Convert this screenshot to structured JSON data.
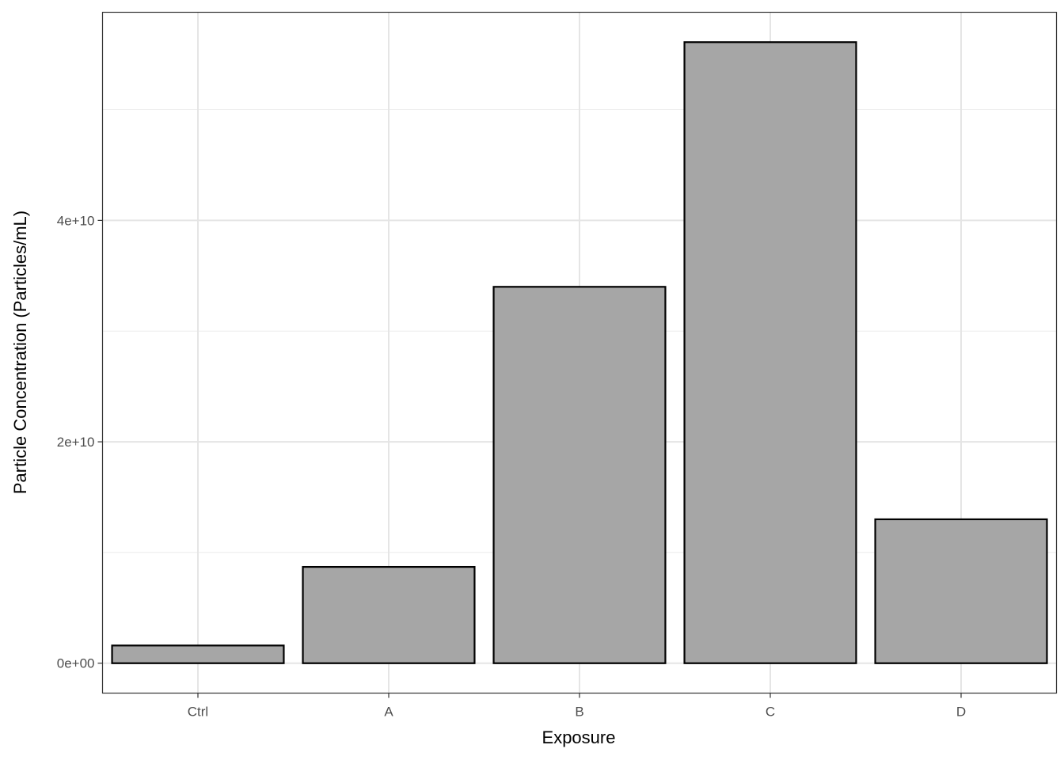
{
  "chart_data": {
    "type": "bar",
    "title": "",
    "xlabel": "Exposure",
    "ylabel": "Particle Concentration (Particles/mL)",
    "categories": [
      "Ctrl",
      "A",
      "B",
      "C",
      "D"
    ],
    "values": [
      1600000000.0,
      8700000000.0,
      34000000000.0,
      56100000000.0,
      13000000000.0
    ],
    "ylim": [
      -2700000000.0,
      58800000000.0
    ],
    "yticks": [
      0,
      20000000000.0,
      40000000000.0
    ],
    "ytick_labels": [
      "0e+00",
      "2e+10",
      "4e+10"
    ],
    "grid": true,
    "bar_fill": "#a6a6a6",
    "bar_outline": "#000000"
  }
}
